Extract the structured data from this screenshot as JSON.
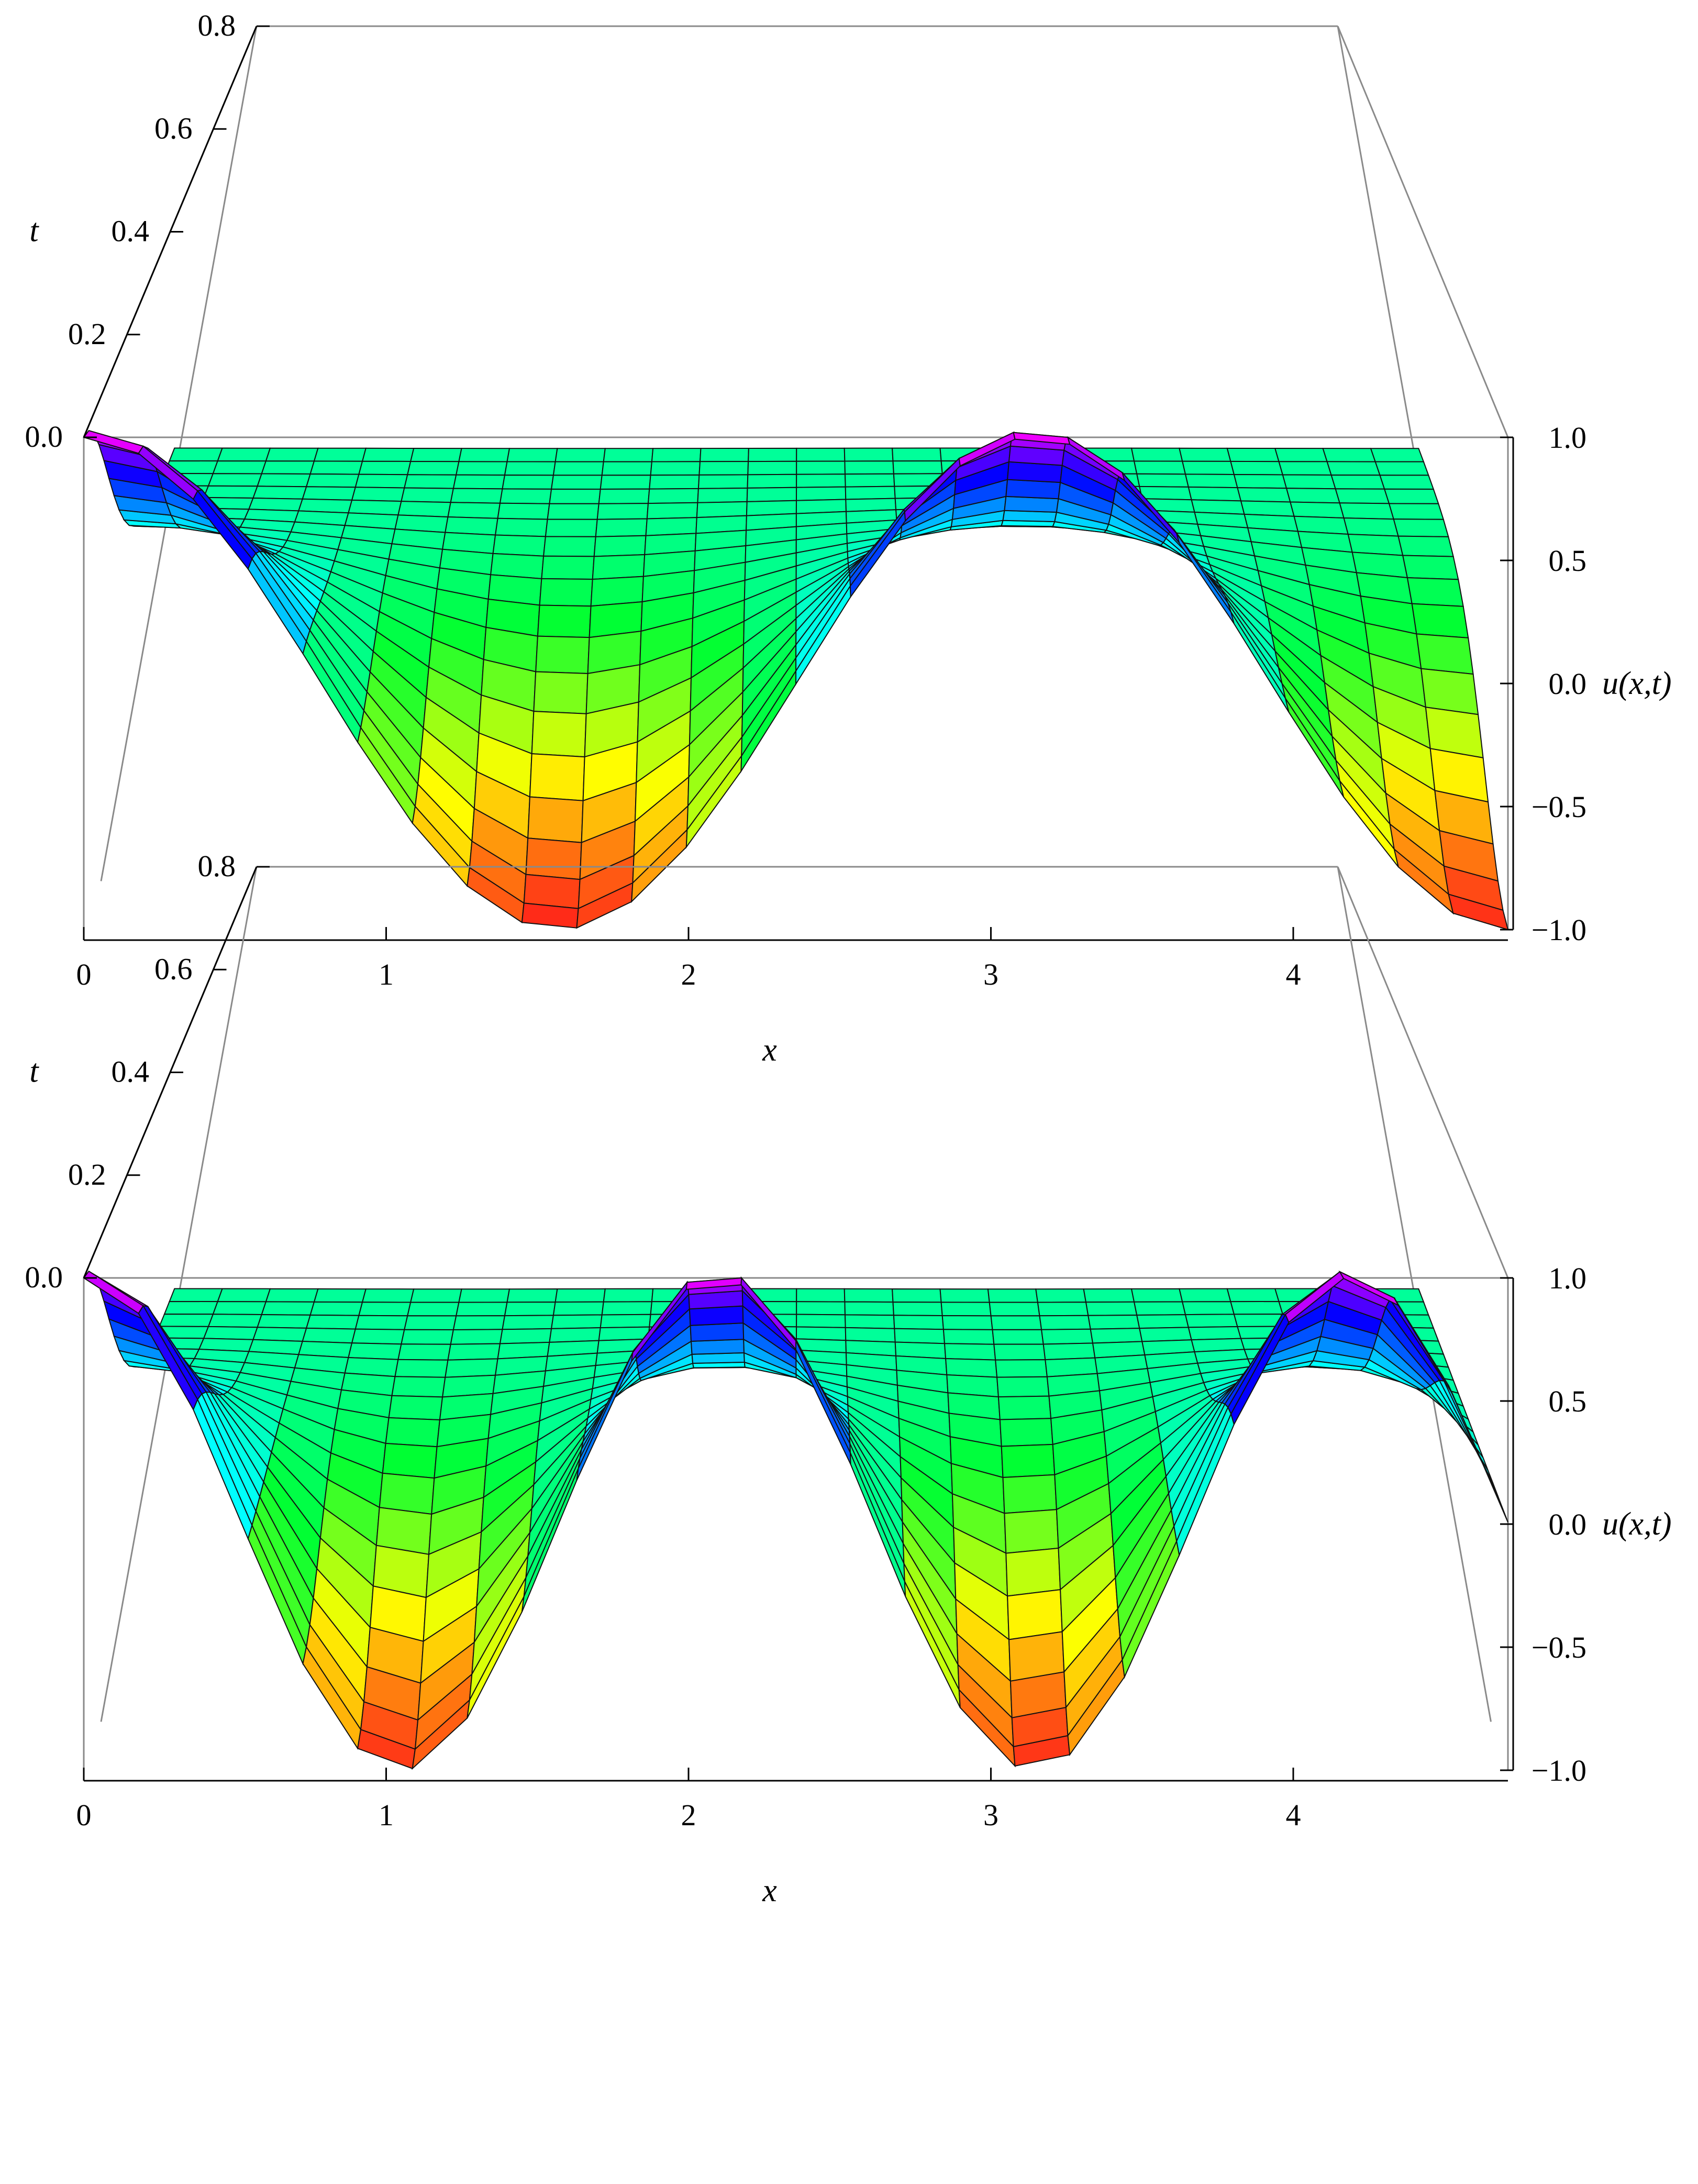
{
  "chart_data": [
    {
      "type": "surface3d",
      "xlabel": "x",
      "ylabel": "t",
      "zlabel": "u(x,t)",
      "x_ticks": [
        "0",
        "1",
        "2",
        "3",
        "4"
      ],
      "t_ticks": [
        "0.0",
        "0.2",
        "0.4",
        "0.6",
        "0.8"
      ],
      "u_ticks": [
        "1.0",
        "0.5",
        "0.0",
        "−0.5",
        "−1.0"
      ],
      "xlim": [
        0,
        4.71
      ],
      "tlim": [
        0,
        0.8
      ],
      "zlim": [
        -1,
        1
      ],
      "k": 2,
      "t_surface_end": 0.42,
      "colormap": [
        "#ff1a1a",
        "#ffff00",
        "#00ff33",
        "#00ffff",
        "#0000ff",
        "#ff00ff"
      ]
    },
    {
      "type": "surface3d",
      "xlabel": "x",
      "ylabel": "t",
      "zlabel": "u(x,t)",
      "x_ticks": [
        "0",
        "1",
        "2",
        "3",
        "4"
      ],
      "t_ticks": [
        "0.0",
        "0.2",
        "0.4",
        "0.6",
        "0.8"
      ],
      "u_ticks": [
        "1.0",
        "0.5",
        "0.0",
        "−0.5",
        "−1.0"
      ],
      "xlim": [
        0,
        4.71
      ],
      "tlim": [
        0,
        0.8
      ],
      "zlim": [
        -1,
        1
      ],
      "k": 3,
      "t_surface_end": 0.42,
      "colormap": [
        "#ff1a1a",
        "#ffff00",
        "#00ff33",
        "#00ffff",
        "#0000ff",
        "#ff00ff"
      ]
    }
  ]
}
